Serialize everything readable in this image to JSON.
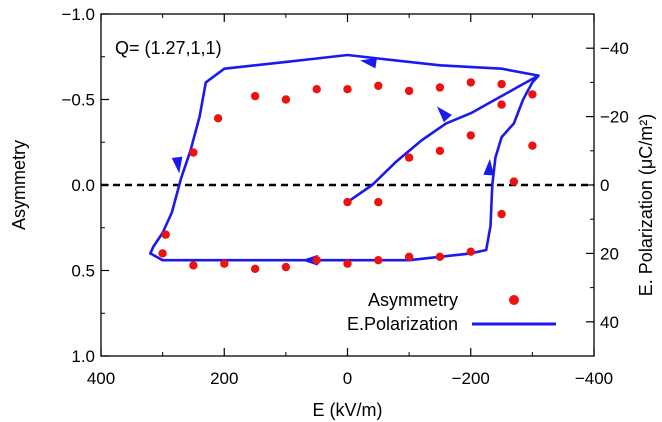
{
  "chart_data": {
    "type": "scatter",
    "annotation": "Q= (1.27,1,1)",
    "xlabel": "E (kV/m)",
    "ylabel": "Asymmetry",
    "y2label": "E. Polarization (μC/m²)",
    "x_axis": {
      "min": 400,
      "max": -400,
      "reversed": true,
      "ticks": [
        400,
        200,
        0,
        -200,
        -400
      ],
      "tick_labels": [
        "400",
        "200",
        "0",
        "−200",
        "−400"
      ]
    },
    "y_axis": {
      "min": -1.0,
      "max": 1.0,
      "inverted": true,
      "ticks": [
        -1.0,
        -0.5,
        0.0,
        0.5,
        1.0
      ],
      "tick_labels": [
        "−1.0",
        "−0.5",
        "0.0",
        "0.5",
        "1.0"
      ]
    },
    "y2_axis": {
      "min": -50,
      "max": 50,
      "inverted": true,
      "ticks": [
        -40,
        -20,
        0,
        20,
        40
      ],
      "tick_labels": [
        "−40",
        "−20",
        "0",
        "20",
        "40"
      ]
    },
    "zero_line": {
      "y": 0.0,
      "style": "dashed"
    },
    "legend": {
      "placement": "bottom-right"
    },
    "series": [
      {
        "name": "Asymmetry",
        "kind": "scatter",
        "axis": "left",
        "color": "#ee1111",
        "points": [
          [
            0,
            0.1
          ],
          [
            -50,
            0.1
          ],
          [
            -100,
            -0.16
          ],
          [
            -150,
            -0.2
          ],
          [
            -200,
            -0.29
          ],
          [
            -250,
            -0.47
          ],
          [
            -300,
            -0.53
          ],
          [
            -300,
            -0.23
          ],
          [
            -270,
            -0.02
          ],
          [
            -250,
            0.17
          ],
          [
            -200,
            0.39
          ],
          [
            -150,
            0.42
          ],
          [
            -100,
            0.42
          ],
          [
            -50,
            0.44
          ],
          [
            0,
            0.46
          ],
          [
            50,
            0.44
          ],
          [
            100,
            0.48
          ],
          [
            150,
            0.49
          ],
          [
            200,
            0.46
          ],
          [
            250,
            0.47
          ],
          [
            300,
            0.4
          ],
          [
            295,
            0.29
          ],
          [
            250,
            -0.19
          ],
          [
            210,
            -0.39
          ],
          [
            150,
            -0.52
          ],
          [
            100,
            -0.5
          ],
          [
            50,
            -0.56
          ],
          [
            0,
            -0.56
          ],
          [
            -50,
            -0.58
          ],
          [
            -100,
            -0.55
          ],
          [
            -150,
            -0.57
          ],
          [
            -200,
            -0.6
          ],
          [
            -250,
            -0.59
          ]
        ]
      },
      {
        "name": "E.Polarization",
        "kind": "line",
        "axis": "right",
        "color": "#1a1aee",
        "points": [
          [
            0,
            5
          ],
          [
            -40,
            0
          ],
          [
            -80,
            -7
          ],
          [
            -120,
            -13
          ],
          [
            -160,
            -18
          ],
          [
            -200,
            -21
          ],
          [
            -240,
            -25
          ],
          [
            -280,
            -29
          ],
          [
            -310,
            -32
          ],
          [
            -250,
            -34
          ],
          [
            -150,
            -35
          ],
          [
            -50,
            -37
          ],
          [
            0,
            -38
          ],
          [
            50,
            -37
          ],
          [
            100,
            -36
          ],
          [
            200,
            -34
          ],
          [
            230,
            -30
          ],
          [
            240,
            -20
          ],
          [
            255,
            -10
          ],
          [
            270,
            -2
          ],
          [
            285,
            8
          ],
          [
            300,
            14
          ],
          [
            315,
            18
          ],
          [
            320,
            20
          ],
          [
            300,
            22
          ],
          [
            200,
            22
          ],
          [
            100,
            22
          ],
          [
            0,
            22
          ],
          [
            -100,
            22
          ],
          [
            -150,
            21
          ],
          [
            -200,
            20
          ],
          [
            -225,
            19
          ],
          [
            -232,
            12
          ],
          [
            -235,
            0
          ],
          [
            -240,
            -8
          ],
          [
            -250,
            -14
          ],
          [
            -270,
            -18
          ],
          [
            -285,
            -25
          ],
          [
            -300,
            -30
          ],
          [
            -310,
            -32
          ]
        ],
        "arrows": [
          {
            "at": [
              -155,
              -21
            ],
            "toward": [
              -140,
              -24
            ]
          },
          {
            "at": [
              -230,
              -5
            ],
            "toward": [
              -232,
              -10
            ]
          },
          {
            "at": [
              -35,
              -36
            ],
            "toward": [
              0,
              -37
            ]
          },
          {
            "at": [
              275,
              -6
            ],
            "toward": [
              272,
              -2
            ]
          },
          {
            "at": [
              60,
              22
            ],
            "toward": [
              80,
              22
            ]
          }
        ]
      }
    ]
  }
}
